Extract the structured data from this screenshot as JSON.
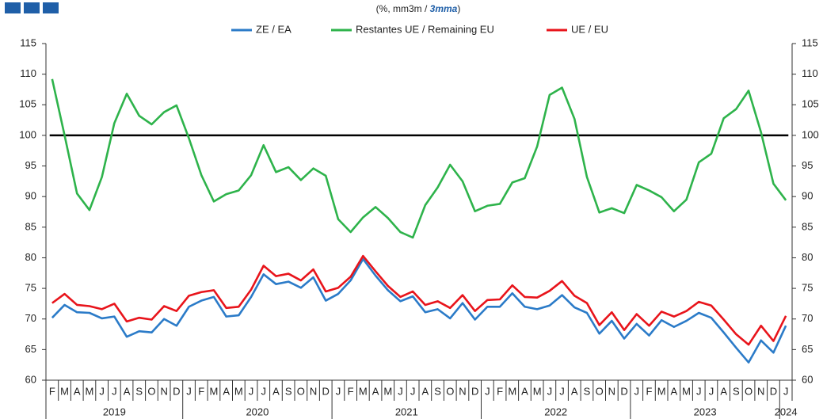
{
  "chart_data": {
    "type": "line",
    "subtitle": "(%, mm3m / ",
    "subtitle_emphasis": "3mma",
    "subtitle_end": ")",
    "categories": [
      "F",
      "M",
      "A",
      "M",
      "J",
      "J",
      "A",
      "S",
      "O",
      "N",
      "D",
      "J",
      "F",
      "M",
      "A",
      "M",
      "J",
      "J",
      "A",
      "S",
      "O",
      "N",
      "D",
      "J",
      "F",
      "M",
      "A",
      "M",
      "J",
      "J",
      "A",
      "S",
      "O",
      "N",
      "D",
      "J",
      "F",
      "M",
      "A",
      "M",
      "J",
      "J",
      "A",
      "S",
      "O",
      "N",
      "D",
      "J",
      "F",
      "M",
      "A",
      "M",
      "J",
      "J",
      "A",
      "S",
      "O",
      "N",
      "D",
      "J"
    ],
    "years": [
      "2019",
      "2020",
      "2021",
      "2022",
      "2023",
      "2024"
    ],
    "series": [
      {
        "name": "ZE / EA",
        "color": "#2b7bc8",
        "values": [
          70.2,
          72.3,
          71.1,
          71.0,
          70.1,
          70.4,
          67.1,
          68.0,
          67.8,
          70.0,
          68.9,
          72.0,
          73.0,
          73.6,
          70.4,
          70.6,
          73.6,
          77.3,
          75.7,
          76.1,
          75.1,
          76.8,
          73.0,
          74.1,
          76.3,
          79.8,
          77.1,
          74.7,
          72.9,
          73.7,
          71.1,
          71.6,
          70.1,
          72.6,
          69.9,
          72.0,
          72.0,
          74.2,
          72.0,
          71.6,
          72.2,
          73.9,
          71.9,
          71.0,
          67.6,
          69.7,
          66.8,
          69.2,
          67.3,
          69.8,
          68.7,
          69.7,
          71.0,
          70.2,
          67.8,
          65.3,
          62.9,
          66.5,
          64.5,
          68.9
        ]
      },
      {
        "name": "Restantes UE / Remaining EU",
        "color": "#2eb34b",
        "values": [
          109.2,
          100.0,
          90.5,
          87.8,
          93.2,
          102.0,
          106.8,
          103.2,
          101.8,
          103.8,
          104.9,
          99.5,
          93.5,
          89.2,
          90.4,
          91.0,
          93.5,
          98.4,
          94.0,
          94.8,
          92.7,
          94.6,
          93.4,
          86.3,
          84.2,
          86.6,
          88.3,
          86.5,
          84.2,
          83.3,
          88.6,
          91.5,
          95.2,
          92.5,
          87.6,
          88.5,
          88.8,
          92.3,
          93.0,
          98.2,
          106.6,
          107.8,
          102.7,
          93.2,
          87.4,
          88.1,
          87.3,
          91.9,
          91.0,
          89.9,
          87.6,
          89.5,
          95.6,
          97.0,
          102.8,
          104.3,
          107.3,
          100.5,
          92.1,
          89.4
        ]
      },
      {
        "name": "UE / EU",
        "color": "#e8141b",
        "values": [
          72.6,
          74.1,
          72.3,
          72.1,
          71.6,
          72.5,
          69.6,
          70.2,
          69.9,
          72.1,
          71.3,
          73.8,
          74.4,
          74.7,
          71.8,
          72.0,
          74.8,
          78.7,
          77.0,
          77.4,
          76.3,
          78.1,
          74.5,
          75.1,
          76.9,
          80.3,
          77.8,
          75.4,
          73.6,
          74.5,
          72.3,
          72.9,
          71.8,
          73.9,
          71.3,
          73.1,
          73.2,
          75.5,
          73.6,
          73.5,
          74.6,
          76.2,
          73.8,
          72.6,
          69.0,
          71.1,
          68.2,
          70.8,
          68.9,
          71.2,
          70.4,
          71.3,
          72.8,
          72.2,
          69.9,
          67.5,
          65.8,
          68.9,
          66.4,
          70.5
        ]
      }
    ],
    "reference_line": 100,
    "ylim": [
      60,
      115
    ],
    "yticks": [
      60,
      65,
      70,
      75,
      80,
      85,
      90,
      95,
      100,
      105,
      110,
      115
    ],
    "grid": false
  }
}
